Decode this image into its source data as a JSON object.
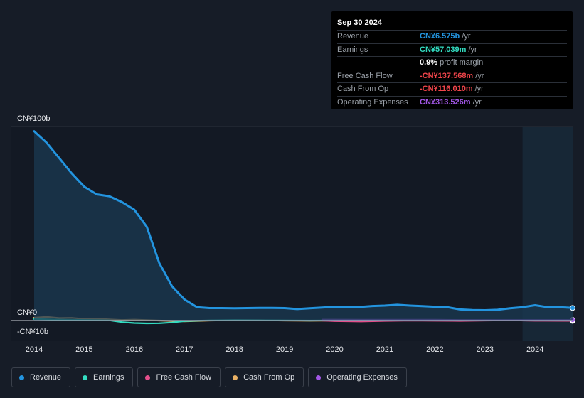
{
  "chart_data": {
    "type": "area",
    "currency_unit": "CN¥",
    "y_tick_labels": [
      {
        "value": 100,
        "label": "CN¥100b"
      },
      {
        "value": 0,
        "label": "CN¥0"
      },
      {
        "value": -10,
        "label": "-CN¥10b"
      }
    ],
    "ylim": [
      -10,
      100
    ],
    "xlim": [
      2014.0,
      2024.75
    ],
    "x_tick_labels": [
      "2014",
      "2015",
      "2016",
      "2017",
      "2018",
      "2019",
      "2020",
      "2021",
      "2022",
      "2023",
      "2024"
    ],
    "x_tick_values": [
      2014,
      2015,
      2016,
      2017,
      2018,
      2019,
      2020,
      2021,
      2022,
      2023,
      2024
    ],
    "grid": true,
    "forecast_start": 2023.75,
    "series": [
      {
        "name": "Revenue",
        "color": "#2394df",
        "fill": true,
        "x": [
          2014.0,
          2014.25,
          2014.5,
          2014.75,
          2015.0,
          2015.25,
          2015.5,
          2015.75,
          2016.0,
          2016.25,
          2016.5,
          2016.75,
          2017.0,
          2017.25,
          2017.5,
          2017.75,
          2018.0,
          2018.25,
          2018.5,
          2018.75,
          2019.0,
          2019.25,
          2019.5,
          2019.75,
          2020.0,
          2020.25,
          2020.5,
          2020.75,
          2021.0,
          2021.25,
          2021.5,
          2021.75,
          2022.0,
          2022.25,
          2022.5,
          2022.75,
          2023.0,
          2023.25,
          2023.5,
          2023.75,
          2024.0,
          2024.25,
          2024.5,
          2024.75
        ],
        "y": [
          99,
          93,
          85,
          77,
          70,
          66,
          65,
          62,
          58,
          49,
          30,
          18,
          11,
          7,
          6.5,
          6.5,
          6.4,
          6.5,
          6.6,
          6.6,
          6.5,
          6.0,
          6.4,
          6.8,
          7.2,
          7.0,
          7.1,
          7.6,
          7.8,
          8.2,
          7.8,
          7.5,
          7.2,
          7.0,
          5.8,
          5.5,
          5.4,
          5.6,
          6.4,
          7.0,
          8.0,
          7.0,
          7.0,
          6.575
        ]
      },
      {
        "name": "Earnings",
        "color": "#33dcc1",
        "x": [
          2014.0,
          2014.5,
          2015.0,
          2015.5,
          2015.75,
          2016.0,
          2016.25,
          2016.5,
          2016.75,
          2017.0,
          2017.5,
          2018.0,
          2018.5,
          2019.0,
          2019.5,
          2020.0,
          2021.0,
          2022.0,
          2023.0,
          2024.0,
          2024.75
        ],
        "y": [
          0.8,
          0.5,
          0.3,
          0.1,
          -0.8,
          -1.3,
          -1.5,
          -1.4,
          -1.0,
          -0.3,
          0.1,
          0.3,
          0.2,
          0.1,
          0.0,
          0.1,
          0.2,
          0.1,
          0.1,
          0.1,
          0.057
        ]
      },
      {
        "name": "Free Cash Flow",
        "color": "#e44f8b",
        "x": [
          2019.75,
          2020.0,
          2020.5,
          2021.0,
          2021.5,
          2022.0,
          2022.5,
          2023.0,
          2023.5,
          2024.0,
          2024.75
        ],
        "y": [
          0.0,
          -0.3,
          -0.5,
          -0.2,
          0.0,
          -0.1,
          -0.2,
          0.0,
          0.1,
          -0.1,
          -0.138
        ]
      },
      {
        "name": "Cash From Op",
        "color": "#e8b064",
        "x": [
          2014.0,
          2014.25,
          2014.5,
          2014.75,
          2015.0,
          2015.25,
          2015.5,
          2015.75,
          2016.0,
          2016.5,
          2017.0,
          2017.5,
          2018.0,
          2018.5,
          2019.0,
          2019.5,
          2020.0,
          2020.5,
          2021.0,
          2021.5,
          2022.0,
          2022.5,
          2023.0,
          2023.5,
          2024.0,
          2024.75
        ],
        "y": [
          1.5,
          1.9,
          1.3,
          1.4,
          0.8,
          1.0,
          0.6,
          0.3,
          0.5,
          0.0,
          -0.4,
          0.0,
          0.2,
          0.2,
          0.0,
          -0.1,
          0.0,
          -0.1,
          0.2,
          0.3,
          0.1,
          0.0,
          0.2,
          0.1,
          0.1,
          -0.116
        ]
      },
      {
        "name": "Operating Expenses",
        "color": "#a257e6",
        "x": [
          2019.75,
          2020.0,
          2020.5,
          2021.0,
          2021.5,
          2022.0,
          2022.5,
          2023.0,
          2023.5,
          2024.0,
          2024.75
        ],
        "y": [
          0.5,
          0.5,
          0.4,
          0.4,
          0.4,
          0.4,
          0.3,
          0.3,
          0.3,
          0.3,
          0.314
        ]
      }
    ]
  },
  "tooltip": {
    "date": "Sep 30 2024",
    "rows": [
      {
        "label": "Revenue",
        "value": "CN¥6.575b",
        "unit": "/yr",
        "color": "#2394df"
      },
      {
        "label": "Earnings",
        "value": "CN¥57.039m",
        "unit": "/yr",
        "color": "#33dcc1"
      },
      {
        "label": "",
        "value": "0.9%",
        "unit": "profit margin",
        "color": "#ffffff"
      },
      {
        "label": "Free Cash Flow",
        "value": "-CN¥137.568m",
        "unit": "/yr",
        "color": "#f2454b"
      },
      {
        "label": "Cash From Op",
        "value": "-CN¥116.010m",
        "unit": "/yr",
        "color": "#f2454b"
      },
      {
        "label": "Operating Expenses",
        "value": "CN¥313.526m",
        "unit": "/yr",
        "color": "#a257e6"
      }
    ]
  },
  "legend": [
    {
      "label": "Revenue",
      "color": "#2394df"
    },
    {
      "label": "Earnings",
      "color": "#33dcc1"
    },
    {
      "label": "Free Cash Flow",
      "color": "#e44f8b"
    },
    {
      "label": "Cash From Op",
      "color": "#e8b064"
    },
    {
      "label": "Operating Expenses",
      "color": "#a257e6"
    }
  ]
}
